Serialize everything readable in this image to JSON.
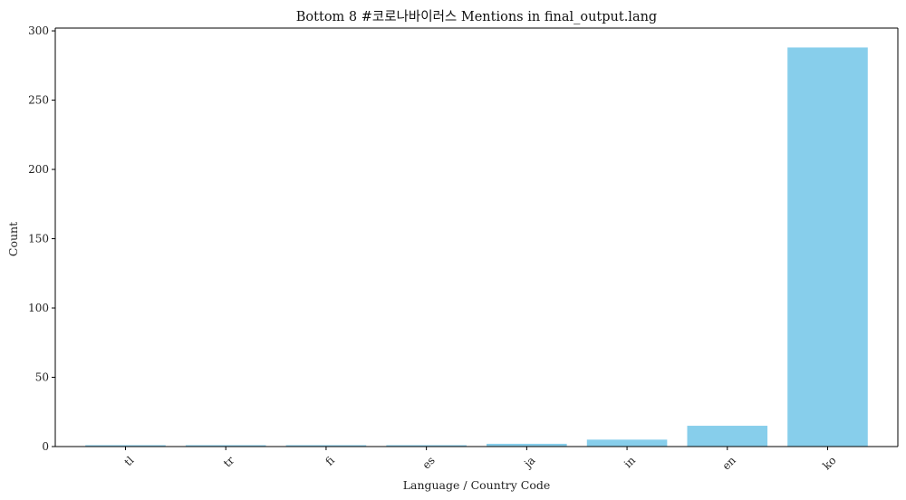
{
  "chart_data": {
    "type": "bar",
    "title": "Bottom 8 #코로나바이러스 Mentions in final_output.lang",
    "xlabel": "Language / Country Code",
    "ylabel": "Count",
    "categories": [
      "tl",
      "tr",
      "fi",
      "es",
      "ja",
      "in",
      "en",
      "ko"
    ],
    "values": [
      1,
      1,
      1,
      1,
      2,
      5,
      15,
      288
    ],
    "ylim": [
      0,
      302
    ],
    "yticks": [
      0,
      50,
      100,
      150,
      200,
      250,
      300
    ],
    "bar_color": "#87CEEB",
    "grid": false,
    "x_tick_rotation": "45 degrees"
  }
}
